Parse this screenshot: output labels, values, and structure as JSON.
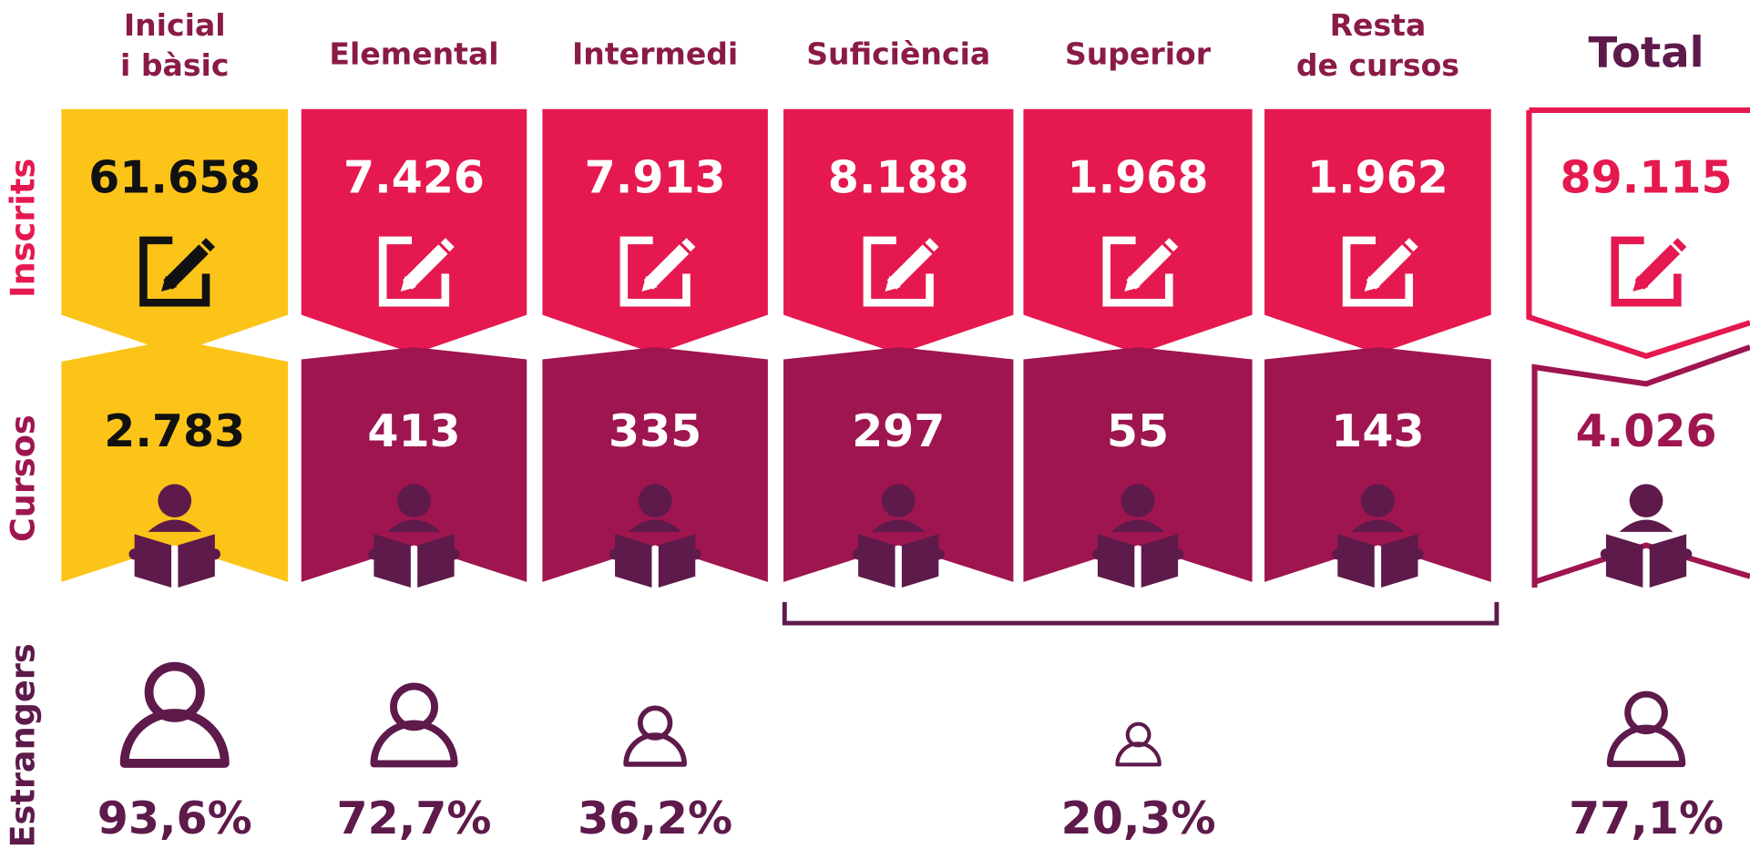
{
  "row_labels": {
    "inscrits": "Inscrits",
    "cursos": "Cursos",
    "estrangers": "Estrangers"
  },
  "columns": [
    {
      "title_lines": [
        "Inicial",
        "i bàsic"
      ],
      "inscrits": "61.658",
      "cursos": "2.783",
      "estrangers": "93,6%"
    },
    {
      "title_lines": [
        "Elemental"
      ],
      "inscrits": "7.426",
      "cursos": "413",
      "estrangers": "72,7%"
    },
    {
      "title_lines": [
        "Intermedi"
      ],
      "inscrits": "7.913",
      "cursos": "335",
      "estrangers": "36,2%"
    },
    {
      "title_lines": [
        "Suficiència"
      ],
      "inscrits": "8.188",
      "cursos": "297"
    },
    {
      "title_lines": [
        "Superior"
      ],
      "inscrits": "1.968",
      "cursos": "55"
    },
    {
      "title_lines": [
        "Resta",
        "de cursos"
      ],
      "inscrits": "1.962",
      "cursos": "143"
    }
  ],
  "group_estrangers": "20,3%",
  "total": {
    "title": "Total",
    "inscrits": "89.115",
    "cursos": "4.026",
    "estrangers": "77,1%"
  }
}
